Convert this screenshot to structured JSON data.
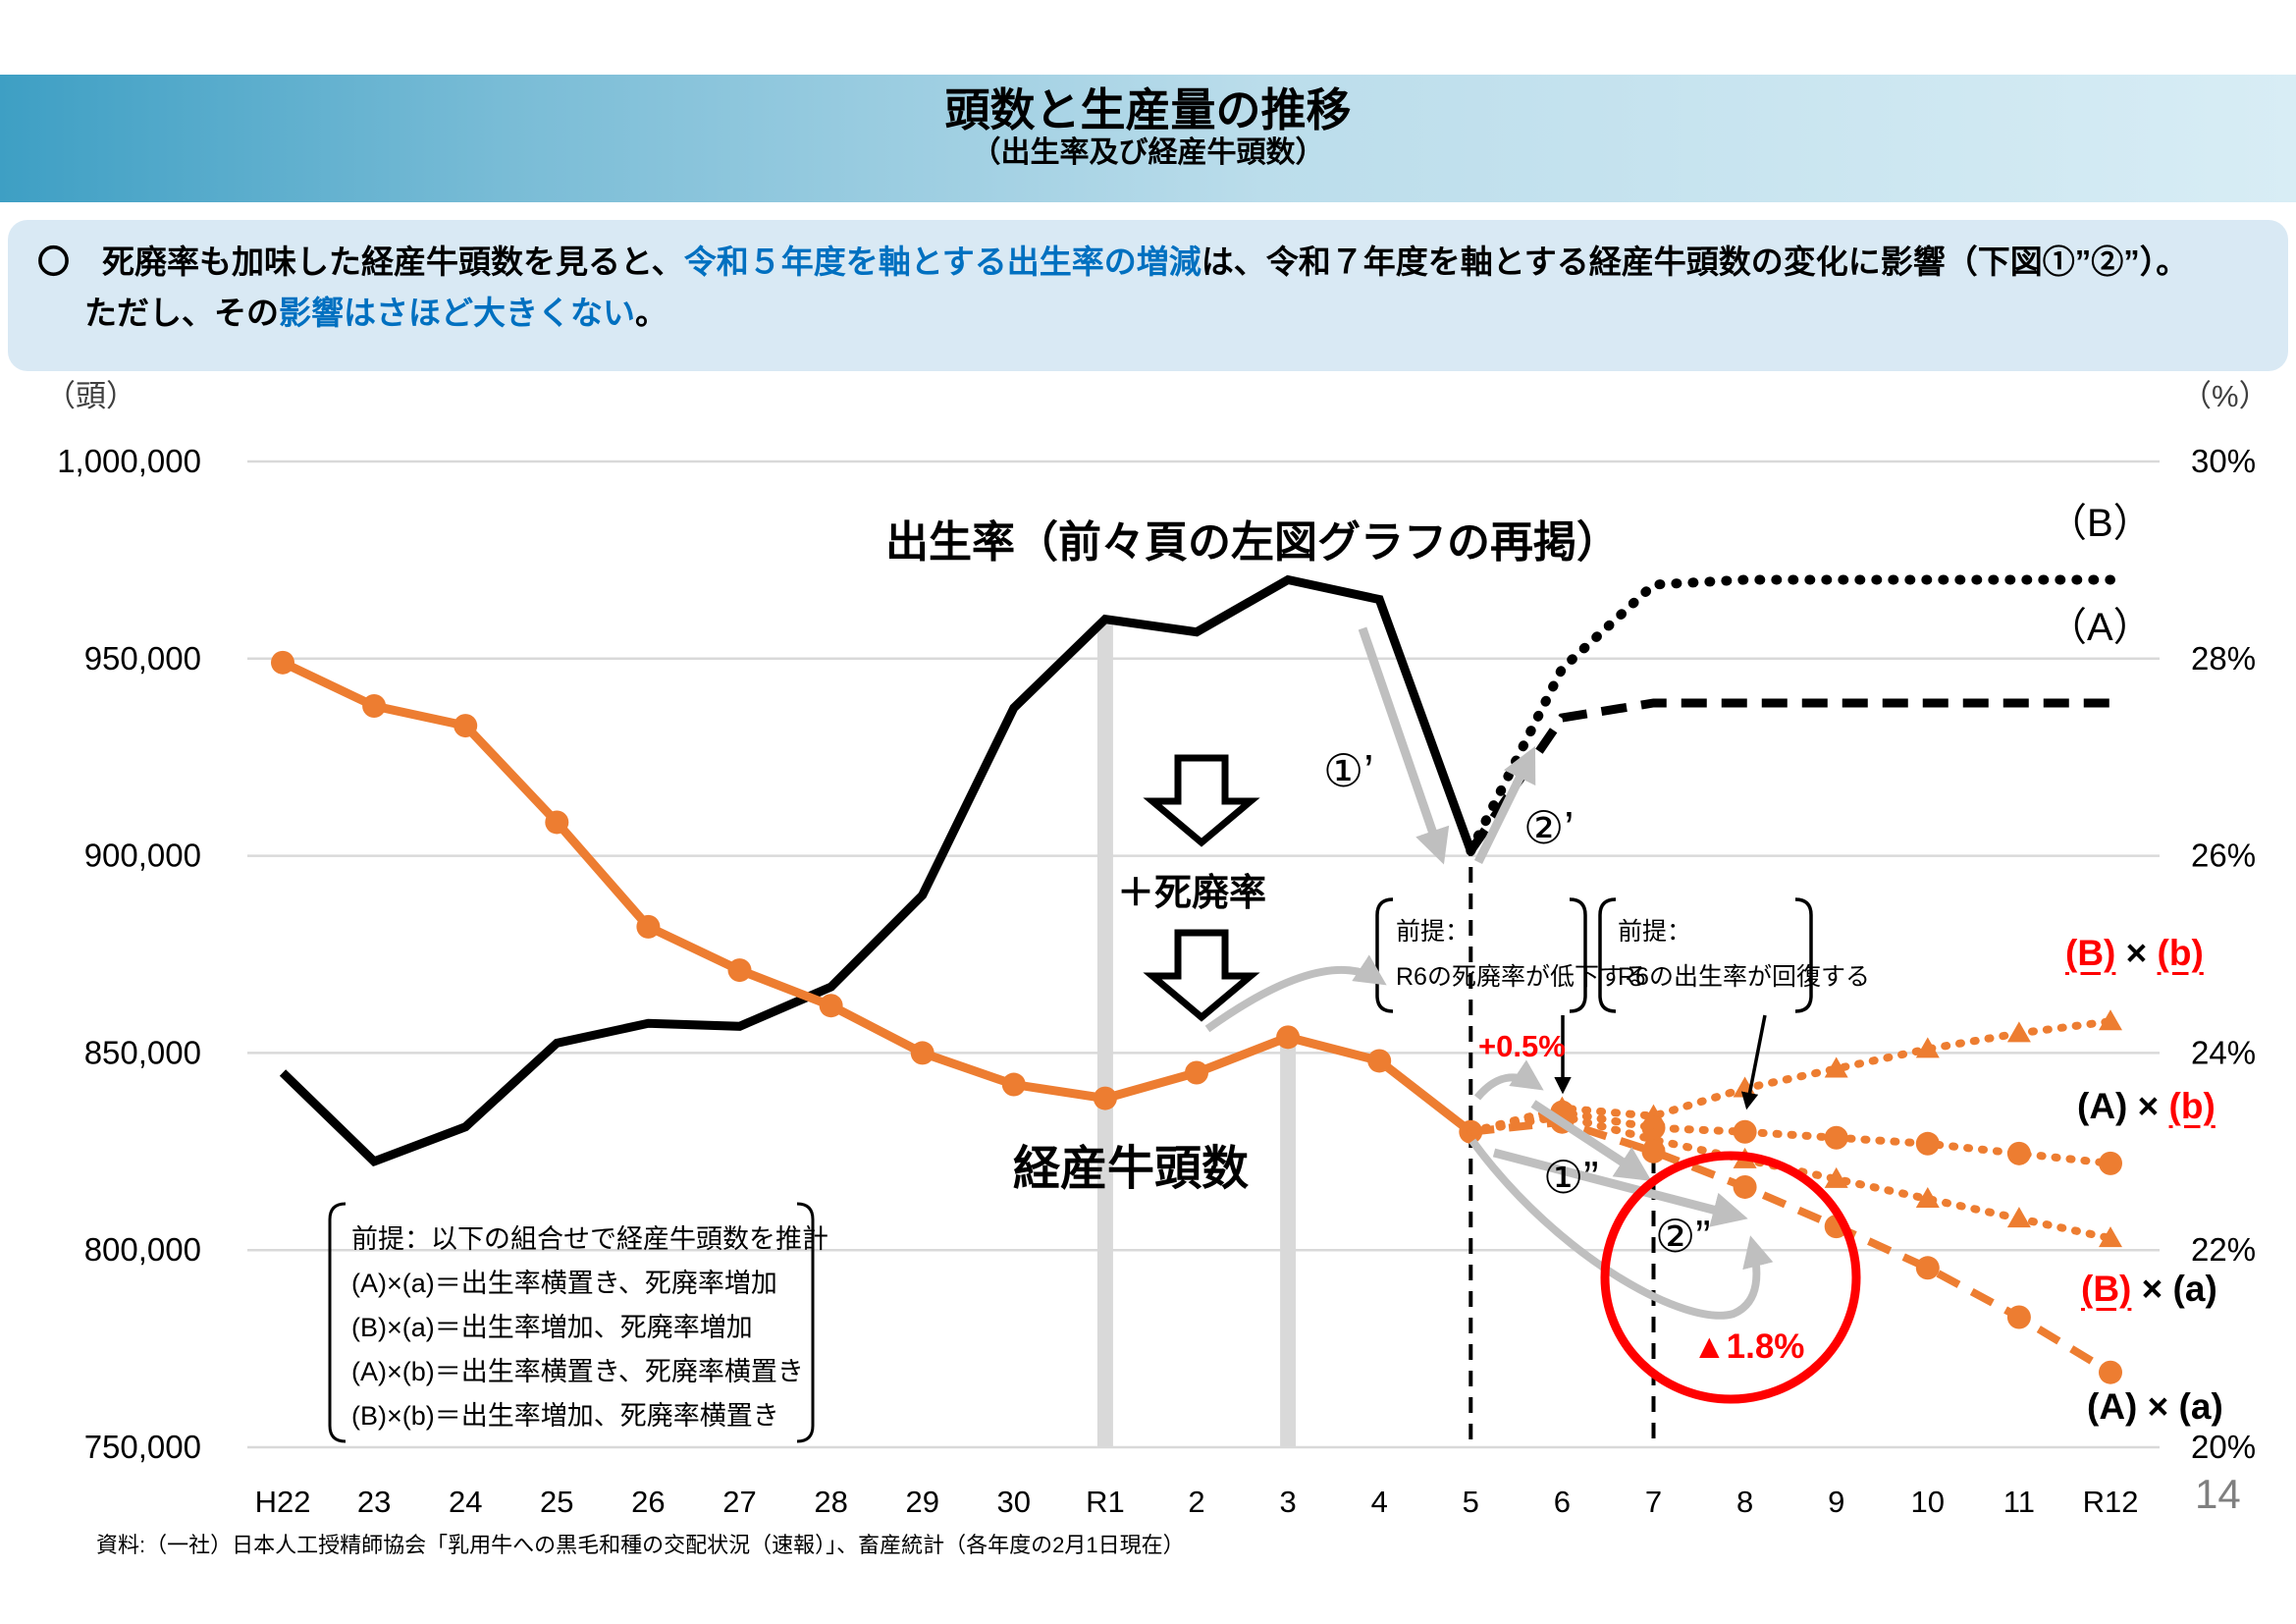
{
  "header": {
    "title": "頭数と生産量の推移",
    "subtitle": "（出生率及び経産牛頭数）"
  },
  "lead": {
    "line1_seg1": "〇　死廃率も加味した経産牛頭数を見ると、",
    "line1_seg2": "令和５年度を軸とする出生率の増減",
    "line1_seg3": "は、令和７年度を軸とする経産牛頭数の変化に影響（下図①”②”）。",
    "line2_seg1": "ただし、その",
    "line2_seg2": "影響はさほど大きくない",
    "line2_seg3": "。"
  },
  "axes": {
    "left_unit": "（頭）",
    "right_unit": "（%）"
  },
  "chart_labels": {
    "birth_title": "出生率（前々頁の左図グラフの再掲）",
    "keisan_label": "経産牛頭数",
    "plus_shihairitsu": "＋死廃率",
    "b_label": "（B）",
    "a_label": "（A）",
    "maru1_prime": "①’",
    "maru2_prime": "②’",
    "maru1_dprime": "①”",
    "maru2_dprime": "②”",
    "plus05": "+0.5%",
    "minus18": "▲1.8%"
  },
  "premise_box1": {
    "line1": "前提：",
    "line2": "R6の死廃率が低下する"
  },
  "premise_box2": {
    "line1": "前提：",
    "line2": "R6の出生率が回復する"
  },
  "assumption_box": {
    "lines": [
      "前提：以下の組合せで経産牛頭数を推計",
      "(A)×(a)＝出生率横置き、死廃率増加",
      "(B)×(a)＝出生率増加、死廃率増加",
      "(A)×(b)＝出生率横置き、死廃率横置き",
      "(B)×(b)＝出生率増加、死廃率横置き"
    ]
  },
  "scenarios": {
    "bb": {
      "l": "(B)",
      "x": " × ",
      "r": "(b)"
    },
    "ab": {
      "l": "(A)",
      "x": " × ",
      "r": "(b)"
    },
    "ba": {
      "l": "(B)",
      "x": " × ",
      "r": "(a)"
    },
    "aa": {
      "l": "(A)",
      "x": " × ",
      "r": "(a)"
    }
  },
  "source": "資料:（一社）日本人工授精師協会「乳用牛への黒毛和種の交配状況（速報）」、畜産統計（各年度の2月1日現在）",
  "page_number": "14",
  "colors": {
    "orange": "#ED7D31",
    "red": "#FF0000",
    "blue": "#0070C0",
    "gray_arrow": "#BFBFBF",
    "grid": "#D9D9D9",
    "bar": "#D9D9D9"
  },
  "chart_data": {
    "type": "line",
    "categories": [
      "H22",
      "23",
      "24",
      "25",
      "26",
      "27",
      "28",
      "29",
      "30",
      "R1",
      "2",
      "3",
      "4",
      "5",
      "6",
      "7",
      "8",
      "9",
      "10",
      "11",
      "R12"
    ],
    "y_left": {
      "ticks": [
        "1,000,000",
        "950,000",
        "900,000",
        "850,000",
        "800,000",
        "750,000"
      ],
      "values": [
        1000000,
        950000,
        900000,
        850000,
        800000,
        750000
      ],
      "min": 750000,
      "max": 1000000
    },
    "y_right": {
      "ticks": [
        "30%",
        "28%",
        "26%",
        "24%",
        "22%",
        "20%"
      ],
      "values": [
        30,
        28,
        26,
        24,
        22,
        20
      ],
      "min": 20,
      "max": 30
    },
    "gray_bars_at": [
      "R1",
      "3"
    ],
    "dashed_vlines_at": [
      "5",
      "7"
    ],
    "series": [
      {
        "id": "keisan",
        "name": "経産牛頭数（実績）",
        "axis": "left",
        "style": "orange_solid",
        "marker": "circle",
        "marker_from": 0,
        "start": 0,
        "values": [
          949000,
          938000,
          933000,
          908500,
          882000,
          871000,
          862000,
          850000,
          842000,
          838500,
          845000,
          854000,
          848000,
          830000
        ]
      },
      {
        "id": "proj_bb",
        "name": "(B)×(b)",
        "axis": "left",
        "style": "orange_dotted",
        "marker": "triangle",
        "marker_from": 1,
        "start": 13,
        "values": [
          830000,
          836000,
          834000,
          841000,
          846000,
          851000,
          855000,
          858000
        ]
      },
      {
        "id": "proj_ab",
        "name": "(A)×(b)",
        "axis": "left",
        "style": "orange_dotted",
        "marker": "circle",
        "marker_from": 1,
        "start": 13,
        "values": [
          830000,
          835000,
          831000,
          830000,
          828500,
          827000,
          824500,
          822000
        ]
      },
      {
        "id": "proj_ba",
        "name": "(B)×(a)",
        "axis": "left",
        "style": "orange_dotted",
        "marker": "triangle",
        "marker_from": 1,
        "start": 13,
        "values": [
          830000,
          834000,
          828000,
          823000,
          818000,
          813000,
          808000,
          803000
        ]
      },
      {
        "id": "proj_aa",
        "name": "(A)×(a)",
        "axis": "left",
        "style": "orange_dashed",
        "marker": "circle",
        "marker_from": 1,
        "start": 13,
        "values": [
          830000,
          832500,
          825000,
          816000,
          806000,
          795500,
          783000,
          769000
        ]
      },
      {
        "id": "birth",
        "name": "出生率（実績）",
        "axis": "right",
        "style": "black_solid",
        "marker": "none",
        "marker_from": 0,
        "start": 0,
        "values": [
          23.8,
          22.9,
          23.25,
          24.1,
          24.3,
          24.27,
          24.67,
          25.6,
          27.5,
          28.4,
          28.27,
          28.8,
          28.6,
          26.05
        ]
      },
      {
        "id": "birth_a",
        "name": "(A) 出生率横置き",
        "axis": "right",
        "style": "black_dashed",
        "marker": "none",
        "marker_from": 0,
        "start": 13,
        "values": [
          26.05,
          27.4,
          27.55,
          27.55,
          27.55,
          27.55,
          27.55,
          27.55
        ]
      },
      {
        "id": "birth_b",
        "name": "(B) 出生率増加",
        "axis": "right",
        "style": "black_dotted",
        "marker": "none",
        "marker_from": 0,
        "start": 13,
        "values": [
          26.05,
          27.9,
          28.75,
          28.8,
          28.8,
          28.8,
          28.8,
          28.8
        ]
      }
    ]
  }
}
